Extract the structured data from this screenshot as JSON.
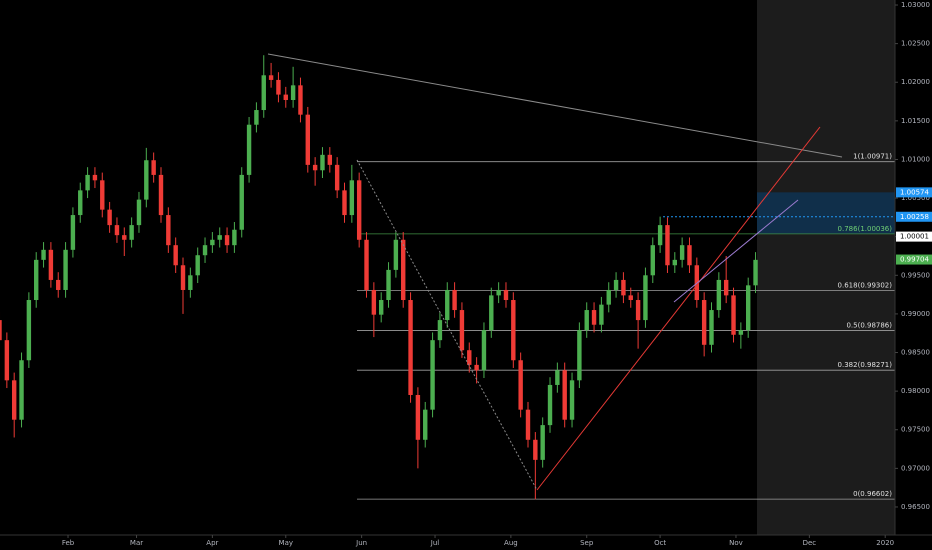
{
  "chart_data": {
    "type": "candlestick",
    "xlim": [
      3.2,
      369
    ],
    "ylim": [
      0.96137,
      1.03065
    ],
    "xticks": [
      {
        "value": 31,
        "label": "Feb"
      },
      {
        "value": 59,
        "label": "Mar"
      },
      {
        "value": 90,
        "label": "Apr"
      },
      {
        "value": 120,
        "label": "May"
      },
      {
        "value": 151,
        "label": "Jun"
      },
      {
        "value": 181,
        "label": "Jul"
      },
      {
        "value": 212,
        "label": "Aug"
      },
      {
        "value": 243,
        "label": "Sep"
      },
      {
        "value": 273,
        "label": "Oct"
      },
      {
        "value": 304,
        "label": "Nov"
      },
      {
        "value": 334,
        "label": "Dec"
      },
      {
        "value": 365,
        "label": "2020"
      }
    ],
    "yticks": [
      {
        "value": 0.965,
        "label": "0.96500"
      },
      {
        "value": 0.97,
        "label": "0.97000"
      },
      {
        "value": 0.975,
        "label": "0.97500"
      },
      {
        "value": 0.98,
        "label": "0.98000"
      },
      {
        "value": 0.985,
        "label": "0.98500"
      },
      {
        "value": 0.99,
        "label": "0.99000"
      },
      {
        "value": 0.995,
        "label": "0.99500"
      },
      {
        "value": 1.0,
        "label": "1.00000"
      },
      {
        "value": 1.005,
        "label": "1.00500"
      },
      {
        "value": 1.01,
        "label": "1.01000"
      },
      {
        "value": 1.015,
        "label": "1.01500"
      },
      {
        "value": 1.02,
        "label": "1.02000"
      },
      {
        "value": 1.025,
        "label": "1.02500"
      },
      {
        "value": 1.03,
        "label": "1.03000"
      }
    ],
    "up_color": "#4caf50",
    "down_color": "#ef3b36",
    "x": [
      3,
      6,
      9,
      12,
      15,
      18,
      21,
      24,
      27,
      30,
      33,
      36,
      39,
      42,
      45,
      48,
      51,
      54,
      57,
      60,
      63,
      66,
      69,
      72,
      75,
      78,
      81,
      84,
      87,
      90,
      93,
      96,
      99,
      102,
      105,
      108,
      111,
      114,
      117,
      120,
      123,
      126,
      129,
      132,
      135,
      138,
      141,
      144,
      147,
      150,
      153,
      156,
      159,
      162,
      165,
      168,
      171,
      174,
      177,
      180,
      183,
      186,
      189,
      192,
      195,
      198,
      201,
      204,
      207,
      210,
      213,
      216,
      219,
      222,
      225,
      228,
      231,
      234,
      237,
      240,
      243,
      246,
      249,
      252,
      255,
      258,
      261,
      264,
      267,
      270,
      273,
      276,
      279,
      282,
      285,
      288,
      291,
      294,
      297,
      300,
      303,
      306,
      309,
      312
    ],
    "open": [
      0.9892,
      0.9866,
      0.9814,
      0.9763,
      0.984,
      0.9918,
      0.997,
      0.9983,
      0.9944,
      0.9931,
      0.9983,
      1.0028,
      1.006,
      1.008,
      1.0073,
      1.0035,
      1.0015,
      1.0002,
      0.9996,
      1.0015,
      1.0048,
      1.0099,
      1.008,
      1.0028,
      0.9989,
      0.9963,
      0.9931,
      0.995,
      0.9976,
      0.9989,
      0.9996,
      1.0002,
      0.9989,
      1.0009,
      1.008,
      1.0145,
      1.0164,
      1.0209,
      1.0203,
      1.0184,
      1.0177,
      1.0196,
      1.0158,
      1.0093,
      1.0086,
      1.0106,
      1.0093,
      1.006,
      1.0028,
      1.0073,
      0.9996,
      0.9931,
      0.9899,
      0.9918,
      0.9957,
      0.9996,
      0.9918,
      0.9795,
      0.9737,
      0.9776,
      0.9866,
      0.9892,
      0.9931,
      0.9905,
      0.9853,
      0.9834,
      0.9827,
      0.9879,
      0.9924,
      0.9931,
      0.9918,
      0.984,
      0.9776,
      0.9737,
      0.9711,
      0.9756,
      0.9808,
      0.9827,
      0.9763,
      0.9814,
      0.9879,
      0.9905,
      0.9886,
      0.9912,
      0.9931,
      0.9944,
      0.9924,
      0.9918,
      0.9892,
      0.995,
      0.9989,
      1.0015,
      0.9963,
      0.997,
      0.9989,
      0.9963,
      0.9918,
      0.986,
      0.9905,
      0.9944,
      0.9924,
      0.9873,
      0.9879,
      0.9937
    ],
    "high": [
      0.9902,
      0.9876,
      0.9824,
      0.985,
      0.9928,
      0.998,
      0.9993,
      0.9993,
      0.9954,
      0.9993,
      1.0038,
      1.007,
      1.009,
      1.009,
      1.0083,
      1.0045,
      1.0025,
      1.0012,
      1.0025,
      1.0058,
      1.0115,
      1.0109,
      1.009,
      1.0038,
      0.9999,
      0.9973,
      0.996,
      0.9986,
      0.9999,
      1.0006,
      1.0012,
      1.0012,
      1.0019,
      1.009,
      1.0155,
      1.0174,
      1.0235,
      1.0225,
      1.0213,
      1.0194,
      1.022,
      1.0206,
      1.0168,
      1.0103,
      1.0116,
      1.0116,
      1.0103,
      1.007,
      1.0093,
      1.0083,
      1.0006,
      0.9941,
      0.9928,
      0.9967,
      1.0006,
      1.0006,
      0.9928,
      0.9805,
      0.9786,
      0.9876,
      0.9902,
      0.9941,
      0.9941,
      0.9915,
      0.9863,
      0.9844,
      0.9889,
      0.9934,
      0.9941,
      0.9941,
      0.9928,
      0.985,
      0.9786,
      0.9747,
      0.9766,
      0.9818,
      0.9837,
      0.9837,
      0.9824,
      0.9889,
      0.9915,
      0.9915,
      0.9922,
      0.9941,
      0.9954,
      0.9954,
      0.9934,
      0.9928,
      0.996,
      0.9999,
      1.0026,
      1.0025,
      0.998,
      0.9999,
      0.9999,
      0.9973,
      0.9928,
      0.9915,
      0.9954,
      0.9975,
      0.9934,
      0.9889,
      0.9947,
      0.998
    ],
    "low": [
      0.9856,
      0.9804,
      0.974,
      0.9753,
      0.983,
      0.9908,
      0.996,
      0.9934,
      0.9921,
      0.9921,
      0.9973,
      1.0018,
      1.005,
      1.0063,
      1.0025,
      1.0005,
      0.9992,
      0.9975,
      0.9986,
      1.0005,
      1.0038,
      1.007,
      1.0018,
      0.9979,
      0.9953,
      0.99,
      0.9921,
      0.994,
      0.9966,
      0.9979,
      0.9986,
      0.9979,
      0.9979,
      0.9999,
      1.007,
      1.0135,
      1.0154,
      1.0193,
      1.0174,
      1.0167,
      1.0167,
      1.0148,
      1.0083,
      1.0066,
      1.0076,
      1.0083,
      1.005,
      1.0018,
      1.0018,
      0.9986,
      0.9921,
      0.987,
      0.9889,
      0.9908,
      0.9947,
      0.9908,
      0.9785,
      0.97,
      0.9727,
      0.9766,
      0.9856,
      0.9882,
      0.9895,
      0.9843,
      0.9824,
      0.981,
      0.9817,
      0.9869,
      0.9914,
      0.9908,
      0.983,
      0.9766,
      0.9727,
      0.966,
      0.9701,
      0.9746,
      0.9798,
      0.9753,
      0.9753,
      0.9804,
      0.9869,
      0.9876,
      0.9876,
      0.9902,
      0.9921,
      0.9914,
      0.9908,
      0.9855,
      0.9882,
      0.994,
      0.9979,
      0.9953,
      0.9953,
      0.996,
      0.9953,
      0.9908,
      0.9845,
      0.985,
      0.9895,
      0.9914,
      0.9863,
      0.9855,
      0.9869,
      0.9927
    ],
    "close": [
      0.9866,
      0.9814,
      0.9763,
      0.984,
      0.9918,
      0.997,
      0.9983,
      0.9944,
      0.9931,
      0.9983,
      1.0028,
      1.006,
      1.008,
      1.0073,
      1.0035,
      1.0015,
      1.0002,
      0.9996,
      1.0015,
      1.0048,
      1.0099,
      1.008,
      1.0028,
      0.9989,
      0.9963,
      0.9931,
      0.995,
      0.9976,
      0.9989,
      0.9996,
      1.0002,
      0.9989,
      1.0009,
      1.008,
      1.0145,
      1.0164,
      1.0209,
      1.0203,
      1.0184,
      1.0177,
      1.0196,
      1.0158,
      1.0093,
      1.0086,
      1.0106,
      1.0093,
      1.006,
      1.0028,
      1.0073,
      0.9996,
      0.9931,
      0.9899,
      0.9918,
      0.9957,
      0.9996,
      0.9918,
      0.9795,
      0.9737,
      0.9776,
      0.9866,
      0.9892,
      0.9931,
      0.9905,
      0.9853,
      0.9834,
      0.9827,
      0.9879,
      0.9924,
      0.9931,
      0.9918,
      0.984,
      0.9776,
      0.9737,
      0.9711,
      0.9756,
      0.9808,
      0.9827,
      0.9763,
      0.9814,
      0.9879,
      0.9905,
      0.9886,
      0.9912,
      0.9931,
      0.9944,
      0.9924,
      0.9918,
      0.9892,
      0.995,
      0.9989,
      1.0015,
      0.9963,
      0.997,
      0.9989,
      0.9963,
      0.9918,
      0.986,
      0.9905,
      0.9944,
      0.9924,
      0.9873,
      0.9879,
      0.9937,
      0.997
    ],
    "fib_levels": [
      {
        "label": "1(1.00971)",
        "value": 1.00971,
        "color": "#9e9e9e"
      },
      {
        "label": "0.786(1.00036)",
        "value": 1.00036,
        "color": "#3f8f45"
      },
      {
        "label": "0.618(0.99302)",
        "value": 0.99302,
        "color": "#9e9e9e"
      },
      {
        "label": "0.5(0.98786)",
        "value": 0.98786,
        "color": "#9e9e9e"
      },
      {
        "label": "0.382(0.98271)",
        "value": 0.98271,
        "color": "#9e9e9e"
      },
      {
        "label": "0(0.96602)",
        "value": 0.96602,
        "color": "#9e9e9e"
      }
    ],
    "price_tags": [
      {
        "value": 1.00574,
        "color": "#2196f3"
      },
      {
        "value": 1.00258,
        "color": "#2196f3"
      },
      {
        "value": 1.00001,
        "color": "#ffffff"
      },
      {
        "value": 0.99704,
        "color": "#4caf50"
      }
    ]
  }
}
